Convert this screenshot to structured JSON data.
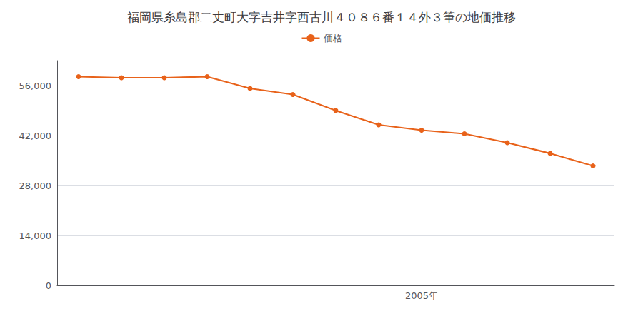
{
  "chart_data": {
    "type": "line",
    "title": "福岡県糸島郡二丈町大字吉井字西古川４０８６番１４外３筆の地価推移",
    "x": [
      1997,
      1998,
      1999,
      2000,
      2001,
      2002,
      2003,
      2004,
      2005,
      2006,
      2007,
      2008,
      2009
    ],
    "series": [
      {
        "name": "価格",
        "color": "#e8621a",
        "marker": "circle",
        "values": [
          58500,
          58200,
          58200,
          58500,
          55200,
          53500,
          49000,
          45000,
          43500,
          42500,
          40000,
          37000,
          33500
        ]
      }
    ],
    "xlim": [
      1996.5,
      2009.5
    ],
    "xticks": [
      {
        "value": 2005,
        "label": "2005年"
      }
    ],
    "ylim": [
      0,
      63000
    ],
    "yticks": [
      0,
      {
        "value": 14000,
        "label": "14,000"
      },
      {
        "value": 28000,
        "label": "28,000"
      },
      {
        "value": 42000,
        "label": "42,000"
      },
      {
        "value": 56000,
        "label": "56,000"
      }
    ],
    "grid": true,
    "legend": "top"
  }
}
